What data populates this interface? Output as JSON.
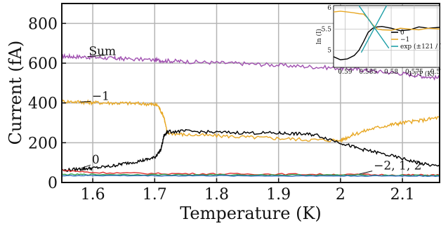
{
  "chart_data": [
    {
      "type": "line",
      "xlabel": "Temperature (K)",
      "ylabel": "Current (fA)",
      "xlim": [
        1.55,
        2.16
      ],
      "ylim": [
        0,
        900
      ],
      "xticks": [
        1.6,
        1.7,
        1.8,
        1.9,
        2.0,
        2.1
      ],
      "xtick_labels": [
        "1.6",
        "1.7",
        "1.8",
        "1.9",
        "2",
        "2.1"
      ],
      "yticks": [
        0,
        200,
        400,
        600,
        800
      ],
      "ytick_labels": [
        "0",
        "200",
        "400",
        "600",
        "800"
      ],
      "grid": true,
      "series": [
        {
          "name": "Sum",
          "color": "#a050b0",
          "x": [
            1.55,
            1.57,
            1.6,
            1.63,
            1.65,
            1.7,
            1.72,
            1.75,
            1.8,
            1.85,
            1.9,
            1.95,
            2.0,
            2.03,
            2.06,
            2.1,
            2.13,
            2.16
          ],
          "y": [
            635,
            633,
            630,
            625,
            622,
            616,
            612,
            608,
            602,
            597,
            590,
            582,
            575,
            568,
            558,
            548,
            535,
            525
          ]
        },
        {
          "name": "−1",
          "color": "#e8a825",
          "x": [
            1.55,
            1.58,
            1.6,
            1.63,
            1.66,
            1.69,
            1.705,
            1.715,
            1.72,
            1.75,
            1.8,
            1.85,
            1.9,
            1.95,
            2.0,
            2.02,
            2.05,
            2.08,
            2.1,
            2.13,
            2.16
          ],
          "y": [
            408,
            405,
            402,
            400,
            398,
            395,
            388,
            330,
            250,
            240,
            235,
            228,
            222,
            215,
            212,
            240,
            270,
            290,
            300,
            312,
            328
          ]
        },
        {
          "name": "0",
          "color": "#000000",
          "x": [
            1.55,
            1.58,
            1.6,
            1.63,
            1.65,
            1.68,
            1.7,
            1.71,
            1.715,
            1.72,
            1.75,
            1.8,
            1.85,
            1.9,
            1.93,
            1.96,
            2.0,
            2.03,
            2.06,
            2.1,
            2.13,
            2.16
          ],
          "y": [
            60,
            68,
            72,
            82,
            95,
            110,
            125,
            165,
            235,
            255,
            258,
            252,
            250,
            248,
            245,
            240,
            200,
            170,
            150,
            120,
            95,
            80
          ]
        },
        {
          "name": "−2, 1, 2 (red)",
          "color": "#e03030",
          "x": [
            1.55,
            1.6,
            1.7,
            1.8,
            1.9,
            2.0,
            2.1,
            2.16
          ],
          "y": [
            62,
            50,
            45,
            43,
            42,
            40,
            38,
            37
          ]
        },
        {
          "name": "−2, 1, 2 (green)",
          "color": "#30a050",
          "x": [
            1.55,
            1.6,
            1.7,
            1.8,
            1.9,
            2.0,
            2.1,
            2.16
          ],
          "y": [
            40,
            40,
            39,
            38,
            38,
            37,
            36,
            35
          ]
        },
        {
          "name": "−2, 1, 2 (blue)",
          "color": "#3070c0",
          "x": [
            1.55,
            1.6,
            1.7,
            1.8,
            1.9,
            2.0,
            2.1,
            2.16
          ],
          "y": [
            34,
            35,
            34,
            34,
            33,
            33,
            33,
            32
          ]
        }
      ],
      "annotations": [
        {
          "text": "Sum",
          "x": 1.58,
          "y": 640,
          "point_x": 1.62,
          "point_y": 640
        },
        {
          "text": "−1",
          "x": 1.585,
          "y": 415,
          "point_x": 1.58,
          "point_y": 405
        },
        {
          "text": "0",
          "x": 1.585,
          "y": 95,
          "point_x": 1.58,
          "point_y": 70
        },
        {
          "text": "−2, 1, 2",
          "x": 2.04,
          "y": 65,
          "point_x": 2.03,
          "point_y": 42
        }
      ]
    },
    {
      "type": "line",
      "xlabel": "1 / T (K)",
      "ylabel": "ln (I)",
      "xlim": [
        0.5925,
        0.5695
      ],
      "ylim": [
        4.6,
        6.05
      ],
      "xticks": [
        0.59,
        0.585,
        0.58,
        0.575,
        0.57
      ],
      "xtick_labels": [
        "0.59",
        "0.585",
        "0.58",
        "0.575",
        "0.57"
      ],
      "yticks": [
        5,
        5.5,
        6
      ],
      "ytick_labels": [
        "5",
        "5.5",
        "6"
      ],
      "grid": true,
      "legend_position": "right",
      "series": [
        {
          "name": "0",
          "color": "#000000",
          "x": [
            0.5925,
            0.591,
            0.5895,
            0.588,
            0.587,
            0.586,
            0.585,
            0.584,
            0.583,
            0.582,
            0.58,
            0.578,
            0.576,
            0.574,
            0.572,
            0.5695
          ],
          "y": [
            4.85,
            4.78,
            4.8,
            4.88,
            5.0,
            5.2,
            5.42,
            5.52,
            5.55,
            5.56,
            5.52,
            5.46,
            5.48,
            5.55,
            5.52,
            5.54
          ]
        },
        {
          "name": "−1",
          "color": "#e8a825",
          "x": [
            0.5925,
            0.591,
            0.5895,
            0.588,
            0.587,
            0.586,
            0.585,
            0.584,
            0.583,
            0.582,
            0.58,
            0.578,
            0.576,
            0.574,
            0.572,
            0.5695
          ],
          "y": [
            5.9,
            5.92,
            5.9,
            5.88,
            5.86,
            5.85,
            5.75,
            5.6,
            5.5,
            5.48,
            5.47,
            5.52,
            5.5,
            5.48,
            5.52,
            5.5
          ]
        },
        {
          "name": "exp (±121 / T)",
          "color": "#20a0a8",
          "x": [
            0.5865,
            0.581
          ],
          "y": [
            4.95,
            6.05
          ]
        },
        {
          "name": "exp (±121 / T) (falling)",
          "color": "#20a0a8",
          "x": [
            0.587,
            0.5805
          ],
          "y": [
            6.05,
            5.05
          ]
        }
      ]
    }
  ]
}
